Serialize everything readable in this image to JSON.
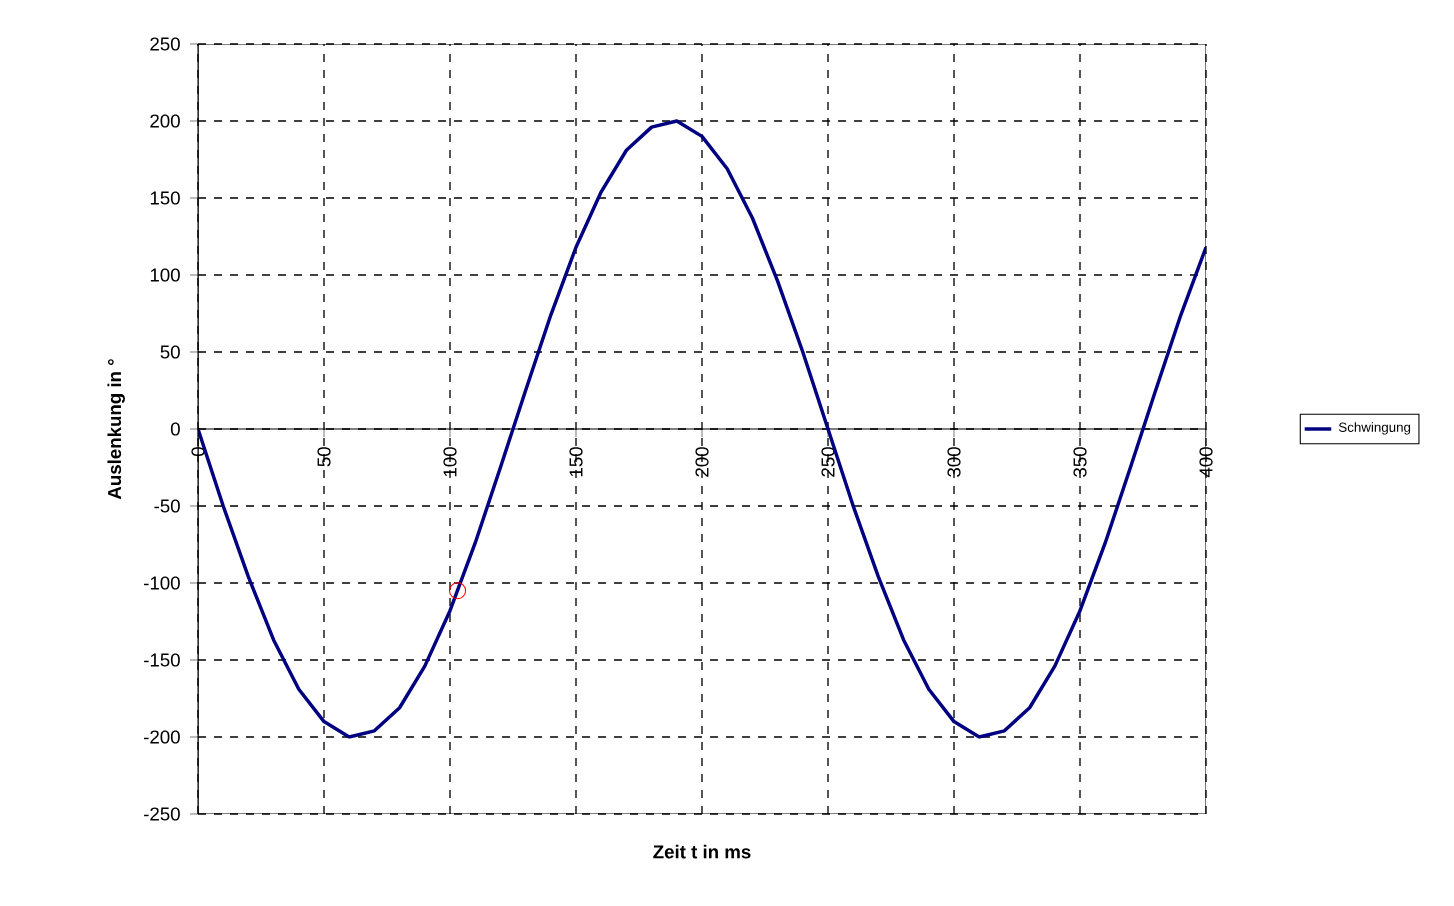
{
  "chart_data": {
    "type": "line",
    "xlabel": "Zeit t in ms",
    "ylabel": "Auslenkung in °",
    "xlim": [
      0,
      400
    ],
    "xticks": [
      0,
      50,
      100,
      150,
      200,
      250,
      300,
      350,
      400
    ],
    "ylim": [
      -250,
      250
    ],
    "yticks": [
      -250,
      -200,
      -150,
      -100,
      -50,
      0,
      50,
      100,
      150,
      200,
      250
    ],
    "grid": true,
    "legend": "right",
    "series": [
      {
        "name": "Schwingung",
        "color": "#000080",
        "marker": "none",
        "x": [
          0,
          10,
          20,
          30,
          40,
          50,
          60,
          70,
          80,
          90,
          100,
          110,
          120,
          130,
          140,
          150,
          160,
          170,
          180,
          190,
          200,
          210,
          220,
          230,
          240,
          250,
          260,
          270,
          280,
          290,
          300,
          310,
          320,
          330,
          340,
          350,
          360,
          370,
          380,
          390,
          400
        ],
        "values": [
          0,
          -50,
          -96,
          -137,
          -169,
          -190,
          -200,
          -196,
          -181,
          -154,
          -118,
          -74,
          -25,
          25,
          74,
          118,
          154,
          181,
          196,
          200,
          190,
          169,
          137,
          96,
          50,
          0,
          -50,
          -96,
          -137,
          -169,
          -190,
          -200,
          -196,
          -181,
          -154,
          -118,
          -74,
          -25,
          25,
          74,
          118
        ]
      },
      {
        "type": "scatter",
        "color": "#ff0000",
        "marker": "circle",
        "x": [
          103
        ],
        "values": [
          -105
        ]
      }
    ]
  }
}
